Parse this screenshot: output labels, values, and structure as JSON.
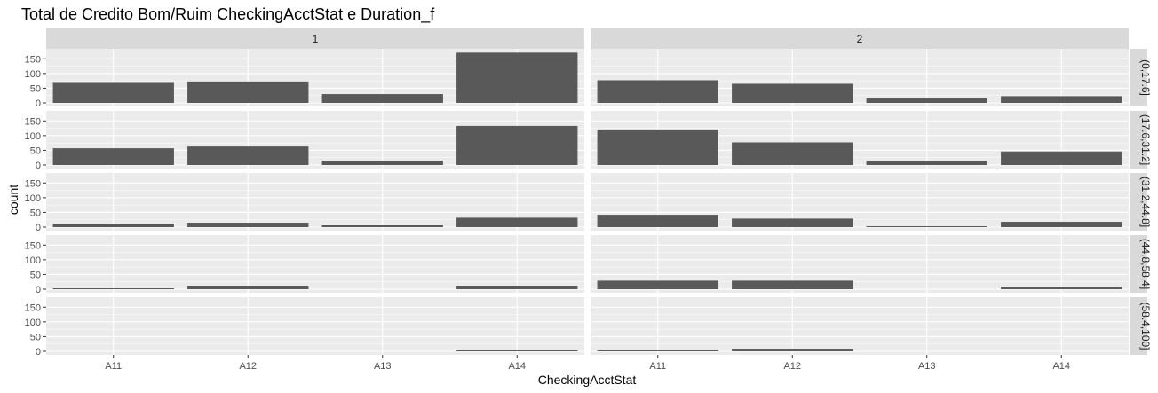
{
  "chart_data": {
    "type": "bar",
    "title": "Total de Credito Bom/Ruim CheckingAcctStat e Duration_f",
    "xlabel": "CheckingAcctStat",
    "ylabel": "count",
    "categories": [
      "A11",
      "A12",
      "A13",
      "A14"
    ],
    "ylim": [
      0,
      175
    ],
    "yticks": [
      0,
      50,
      100,
      150
    ],
    "grid": true,
    "columns": [
      "1",
      "2"
    ],
    "rows": [
      "(0,17.6]",
      "(17.6,31.2]",
      "(31.2,44.8]",
      "(44.8,58.4]",
      "(58.4,100]"
    ],
    "panels": [
      {
        "column": "1",
        "row": "(0,17.6]",
        "values": [
          71,
          73,
          30,
          171
        ]
      },
      {
        "column": "2",
        "row": "(0,17.6]",
        "values": [
          77,
          65,
          15,
          23
        ]
      },
      {
        "column": "1",
        "row": "(17.6,31.2]",
        "values": [
          57,
          63,
          15,
          133
        ]
      },
      {
        "column": "2",
        "row": "(17.6,31.2]",
        "values": [
          121,
          77,
          12,
          46
        ]
      },
      {
        "column": "1",
        "row": "(31.2,44.8]",
        "values": [
          12,
          15,
          6,
          32
        ]
      },
      {
        "column": "2",
        "row": "(31.2,44.8]",
        "values": [
          42,
          29,
          3,
          18
        ]
      },
      {
        "column": "1",
        "row": "(44.8,58.4]",
        "values": [
          3,
          12,
          0,
          12
        ]
      },
      {
        "column": "2",
        "row": "(44.8,58.4]",
        "values": [
          29,
          29,
          0,
          9
        ]
      },
      {
        "column": "1",
        "row": "(58.4,100]",
        "values": [
          0,
          0,
          0,
          3
        ]
      },
      {
        "column": "2",
        "row": "(58.4,100]",
        "values": [
          3,
          9,
          0,
          0
        ]
      }
    ],
    "colors": {
      "panel_bg": "#ebebeb",
      "grid": "#ffffff",
      "bar": "#595959",
      "strip_bg": "#d9d9d9",
      "tick_text": "#4d4d4d"
    }
  }
}
